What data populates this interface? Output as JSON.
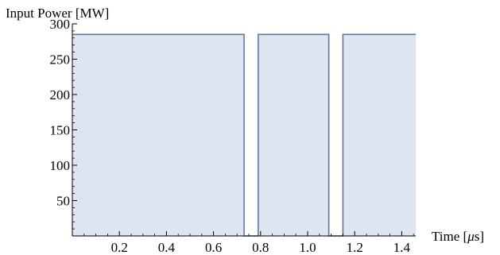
{
  "chart_data": {
    "type": "area",
    "ylabel": "Input Power [MW]",
    "xlabel_prefix": "Time [",
    "xlabel_symbol": "μ",
    "xlabel_suffix": "s]",
    "xlim": [
      0,
      1.46
    ],
    "ylim": [
      0,
      300
    ],
    "x_ticks": [
      {
        "value": 0.2,
        "label": "0.2"
      },
      {
        "value": 0.4,
        "label": "0.4"
      },
      {
        "value": 0.6,
        "label": "0.6"
      },
      {
        "value": 0.8,
        "label": "0.8"
      },
      {
        "value": 1.0,
        "label": "1.0"
      },
      {
        "value": 1.2,
        "label": "1.2"
      },
      {
        "value": 1.4,
        "label": "1.4"
      }
    ],
    "y_ticks": [
      {
        "value": 50,
        "label": "50"
      },
      {
        "value": 100,
        "label": "100"
      },
      {
        "value": 150,
        "label": "150"
      },
      {
        "value": 200,
        "label": "200"
      },
      {
        "value": 250,
        "label": "250"
      },
      {
        "value": 300,
        "label": "300"
      }
    ],
    "series": [
      {
        "x": [
          0,
          0.73,
          0.73,
          0.79,
          0.79,
          1.09,
          1.09,
          1.15,
          1.15,
          1.46
        ],
        "y": [
          285,
          285,
          0,
          0,
          285,
          285,
          0,
          0,
          285,
          285
        ]
      }
    ],
    "grid": false,
    "colors": {
      "line": "#5a7aa3",
      "fill": "#dfe5f0",
      "axis": "#000000"
    }
  }
}
